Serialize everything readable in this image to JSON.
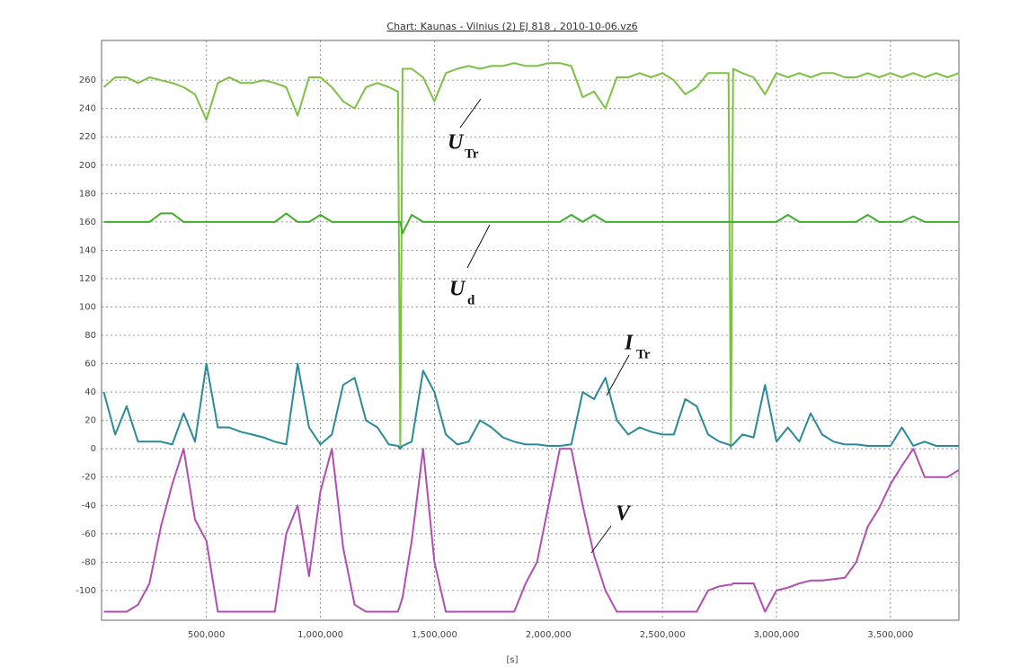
{
  "chart_data": {
    "type": "line",
    "title": "Chart: Kaunas - Vilnius (2) EJ 818 , 2010-10-06.vz6",
    "x_label": "[s]",
    "x": [
      50000,
      100000,
      150000,
      200000,
      250000,
      300000,
      350000,
      400000,
      450000,
      500000,
      550000,
      600000,
      650000,
      700000,
      750000,
      800000,
      850000,
      900000,
      950000,
      1000000,
      1050000,
      1100000,
      1150000,
      1200000,
      1250000,
      1300000,
      1340000,
      1350000,
      1360000,
      1400000,
      1450000,
      1500000,
      1550000,
      1600000,
      1650000,
      1700000,
      1750000,
      1800000,
      1850000,
      1900000,
      1950000,
      2000000,
      2050000,
      2100000,
      2150000,
      2200000,
      2250000,
      2300000,
      2350000,
      2400000,
      2450000,
      2500000,
      2550000,
      2600000,
      2650000,
      2700000,
      2750000,
      2790000,
      2800000,
      2810000,
      2850000,
      2900000,
      2950000,
      3000000,
      3050000,
      3100000,
      3150000,
      3200000,
      3250000,
      3300000,
      3350000,
      3400000,
      3450000,
      3500000,
      3550000,
      3600000,
      3650000,
      3700000,
      3750000,
      3800000
    ],
    "series": [
      {
        "name": "U_Tr",
        "color": "#7cc144",
        "values": [
          255,
          262,
          262,
          258,
          262,
          260,
          258,
          255,
          250,
          232,
          258,
          262,
          258,
          258,
          260,
          258,
          255,
          235,
          262,
          262,
          255,
          245,
          240,
          255,
          258,
          255,
          252,
          0,
          268,
          268,
          262,
          245,
          265,
          268,
          270,
          268,
          270,
          270,
          272,
          270,
          270,
          272,
          272,
          270,
          248,
          252,
          240,
          262,
          262,
          265,
          262,
          265,
          260,
          250,
          255,
          265,
          265,
          265,
          0,
          268,
          265,
          262,
          250,
          265,
          262,
          265,
          262,
          265,
          265,
          262,
          262,
          265,
          262,
          265,
          262,
          265,
          262,
          265,
          262,
          265
        ]
      },
      {
        "name": "U_d",
        "color": "#3fae2a",
        "values": [
          160,
          160,
          160,
          160,
          160,
          166,
          166,
          160,
          160,
          160,
          160,
          160,
          160,
          160,
          160,
          160,
          166,
          160,
          160,
          165,
          160,
          160,
          160,
          160,
          160,
          160,
          160,
          160,
          152,
          165,
          160,
          160,
          160,
          160,
          160,
          160,
          160,
          160,
          160,
          160,
          160,
          160,
          160,
          165,
          160,
          165,
          160,
          160,
          160,
          160,
          160,
          160,
          160,
          160,
          160,
          160,
          160,
          160,
          160,
          160,
          160,
          160,
          160,
          160,
          165,
          160,
          160,
          160,
          160,
          160,
          160,
          165,
          160,
          160,
          160,
          164,
          160,
          160,
          160,
          160
        ]
      },
      {
        "name": "I_Tr",
        "color": "#2a8a9a",
        "values": [
          40,
          10,
          30,
          5,
          5,
          5,
          3,
          25,
          5,
          60,
          15,
          15,
          12,
          10,
          8,
          5,
          3,
          60,
          15,
          3,
          10,
          45,
          50,
          20,
          15,
          3,
          2,
          0,
          2,
          5,
          55,
          40,
          10,
          3,
          5,
          20,
          15,
          8,
          5,
          3,
          3,
          2,
          2,
          3,
          40,
          35,
          50,
          20,
          10,
          15,
          12,
          10,
          10,
          35,
          30,
          10,
          5,
          3,
          2,
          3,
          10,
          8,
          45,
          5,
          15,
          5,
          25,
          10,
          5,
          3,
          3,
          2,
          2,
          2,
          15,
          2,
          5,
          2,
          2,
          2
        ]
      },
      {
        "name": "V",
        "color": "#b04fb0",
        "values": [
          -115,
          -115,
          -115,
          -110,
          -95,
          -55,
          -25,
          0,
          -50,
          -65,
          -115,
          -115,
          -115,
          -115,
          -115,
          -115,
          -60,
          -40,
          -90,
          -30,
          0,
          -70,
          -110,
          -115,
          -115,
          -115,
          -115,
          -110,
          -105,
          -65,
          0,
          -80,
          -115,
          -115,
          -115,
          -115,
          -115,
          -115,
          -115,
          -95,
          -80,
          -40,
          0,
          0,
          -40,
          -75,
          -100,
          -115,
          -115,
          -115,
          -115,
          -115,
          -115,
          -115,
          -115,
          -100,
          -97,
          -96,
          -96,
          -95,
          -95,
          -95,
          -115,
          -100,
          -98,
          -95,
          -93,
          -93,
          -92,
          -91,
          -80,
          -55,
          -42,
          -25,
          -12,
          0,
          -20,
          -20,
          -20,
          -15
        ]
      }
    ],
    "xlim": [
      40000,
      3800000
    ],
    "ylim": [
      -121,
      288
    ],
    "xticks": [
      {
        "value": 500000,
        "label": "500,000"
      },
      {
        "value": 1000000,
        "label": "1,000,000"
      },
      {
        "value": 1500000,
        "label": "1,500,000"
      },
      {
        "value": 2000000,
        "label": "2,000,000"
      },
      {
        "value": 2500000,
        "label": "2,500,000"
      },
      {
        "value": 3000000,
        "label": "3,000,000"
      },
      {
        "value": 3500000,
        "label": "3,500,000"
      }
    ],
    "yticks": [
      -100,
      -80,
      -60,
      -40,
      -20,
      0,
      20,
      40,
      60,
      80,
      100,
      120,
      140,
      160,
      180,
      200,
      220,
      240,
      260
    ],
    "grid": true,
    "annotations": [
      {
        "text": "U",
        "sub": "Tr"
      },
      {
        "text": "U",
        "sub": "d"
      },
      {
        "text": "I",
        "sub": "Tr"
      },
      {
        "text": "V"
      }
    ]
  }
}
